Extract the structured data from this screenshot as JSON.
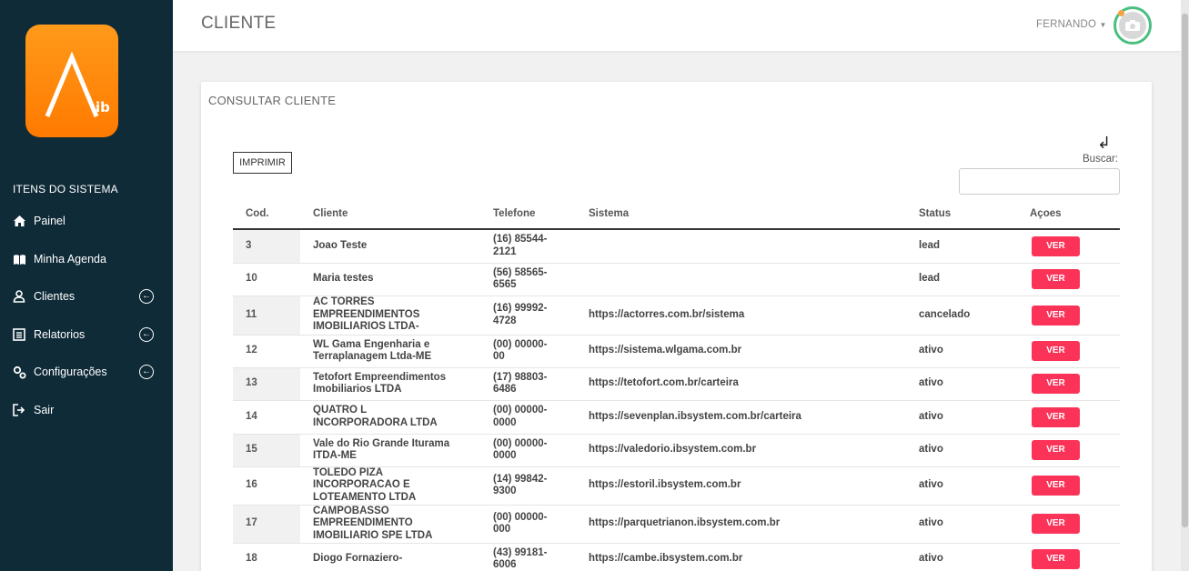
{
  "logo": {
    "letter": "Λ",
    "sub": "ib"
  },
  "sidebar": {
    "title": "ITENS DO SISTEMA",
    "items": [
      {
        "label": "Painel",
        "icon": "home-icon",
        "expandable": false
      },
      {
        "label": "Minha Agenda",
        "icon": "book-icon",
        "expandable": false
      },
      {
        "label": "Clientes",
        "icon": "users-icon",
        "expandable": true
      },
      {
        "label": "Relatorios",
        "icon": "report-icon",
        "expandable": true
      },
      {
        "label": "Configurações",
        "icon": "cogs-icon",
        "expandable": true
      },
      {
        "label": "Sair",
        "icon": "sign-out-icon",
        "expandable": false
      }
    ]
  },
  "header": {
    "title": "CLIENTE",
    "user": "FERNANDO",
    "avatar_icon": "camera-icon"
  },
  "card": {
    "title": "CONSULTAR CLIENTE",
    "print_label": "IMPRIMIR",
    "return_icon": "↲",
    "search_label": "Buscar:",
    "search_value": ""
  },
  "table": {
    "headers": [
      "Cod.",
      "Cliente",
      "Telefone",
      "Sistema",
      "Status",
      "Açoes"
    ],
    "action_label": "VER",
    "rows": [
      {
        "cod": "3",
        "cliente": "Joao Teste",
        "telefone": "(16) 85544-\n2121",
        "sistema": "",
        "status": "lead"
      },
      {
        "cod": "10",
        "cliente": "Maria testes",
        "telefone": "(56) 58565-\n6565",
        "sistema": "",
        "status": "lead"
      },
      {
        "cod": "11",
        "cliente": "AC TORRES\nEMPREENDIMENTOS\nIMOBILIARIOS LTDA-",
        "telefone": "(16) 99992-\n4728",
        "sistema": "https://actorres.com.br/sistema",
        "status": "cancelado"
      },
      {
        "cod": "12",
        "cliente": "WL Gama Engenharia e\nTerraplanagem Ltda-ME",
        "telefone": "(00) 00000-\n00",
        "sistema": "https://sistema.wlgama.com.br",
        "status": "ativo"
      },
      {
        "cod": "13",
        "cliente": "Tetofort Empreendimentos\nImobiliarios LTDA",
        "telefone": "(17) 98803-\n6486",
        "sistema": "https://tetofort.com.br/carteira",
        "status": "ativo"
      },
      {
        "cod": "14",
        "cliente": "QUATRO L\nINCORPORADORA LTDA",
        "telefone": "(00) 00000-\n0000",
        "sistema": "https://sevenplan.ibsystem.com.br/carteira",
        "status": "ativo"
      },
      {
        "cod": "15",
        "cliente": "Vale do Rio Grande Iturama\nITDA-ME",
        "telefone": "(00) 00000-\n0000",
        "sistema": "https://valedorio.ibsystem.com.br",
        "status": "ativo"
      },
      {
        "cod": "16",
        "cliente": "TOLEDO PIZA\nINCORPORACAO E\nLOTEAMENTO LTDA",
        "telefone": "(14) 99842-\n9300",
        "sistema": "https://estoril.ibsystem.com.br",
        "status": "ativo"
      },
      {
        "cod": "17",
        "cliente": "CAMPOBASSO\nEMPREENDIMENTO\nIMOBILIARIO SPE LTDA",
        "telefone": "(00) 00000-\n000",
        "sistema": "https://parquetrianon.ibsystem.com.br",
        "status": "ativo"
      },
      {
        "cod": "18",
        "cliente": "Diogo Fornaziero-",
        "telefone": "(43) 99181-\n6006",
        "sistema": "https://cambe.ibsystem.com.br",
        "status": "ativo"
      }
    ]
  },
  "colors": {
    "sidebar": "#0f2b38",
    "accent": "#fc3358",
    "logo": "#ff8a00",
    "avatar_ring": "#4bbf7f"
  }
}
